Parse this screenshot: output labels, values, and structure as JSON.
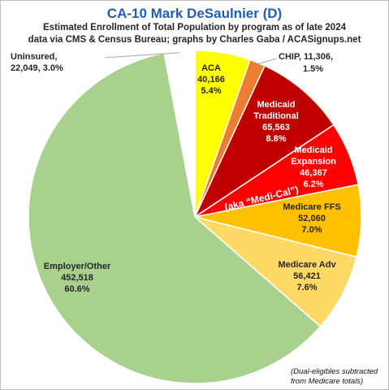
{
  "chart_data": {
    "type": "pie",
    "title": "CA-10 Mark DeSaulnier (D)",
    "subtitle_line1": "Estimated Enrollment of Total Population by program as of late 2024",
    "subtitle_line2": "data via CMS & Census Bureau; graphs by Charles Gaba / ACASignups.net",
    "slices": [
      {
        "label": "ACA",
        "value": 40166,
        "value_text": "40,166",
        "percent": "5.4%",
        "color": "#ffff00",
        "text_color": "#262626"
      },
      {
        "label": "CHIP",
        "value": 11306,
        "value_text": "11,306",
        "percent": "1.5%",
        "color": "#ed7d31",
        "text_color": "#262626"
      },
      {
        "label": "Medicaid Traditional",
        "value": 65563,
        "value_text": "65,563",
        "percent": "8.8%",
        "color": "#c00000",
        "text_color": "#ffffff"
      },
      {
        "label": "Medicaid Expansion",
        "value": 46367,
        "value_text": "46,367",
        "percent": "6.2%",
        "color": "#ff0000",
        "text_color": "#ffffff"
      },
      {
        "label": "Medicare FFS",
        "value": 52060,
        "value_text": "52,060",
        "percent": "7.0%",
        "color": "#ffc000",
        "text_color": "#262626"
      },
      {
        "label": "Medicare Adv",
        "value": 56421,
        "value_text": "56,421",
        "percent": "7.6%",
        "color": "#ffd966",
        "text_color": "#262626"
      },
      {
        "label": "Employer/Other",
        "value": 452518,
        "value_text": "452,518",
        "percent": "60.6%",
        "color": "#a9d18e",
        "text_color": "#262626"
      },
      {
        "label": "Uninsured",
        "value": 22049,
        "value_text": "22,049",
        "percent": "3.0%",
        "color": "#ffffff",
        "text_color": "#262626"
      }
    ],
    "annotations": {
      "medi_cal": "(aka “Medi-Cal”)",
      "chip_label": "CHIP, 11,306,",
      "chip_percent": "1.5%",
      "uninsured_label": "Uninsured,",
      "uninsured_values": "22,049, 3.0%",
      "footnote_line1": "(Dual-eligibles subtracted",
      "footnote_line2": "from Medicare totals)"
    },
    "legend": "none"
  }
}
